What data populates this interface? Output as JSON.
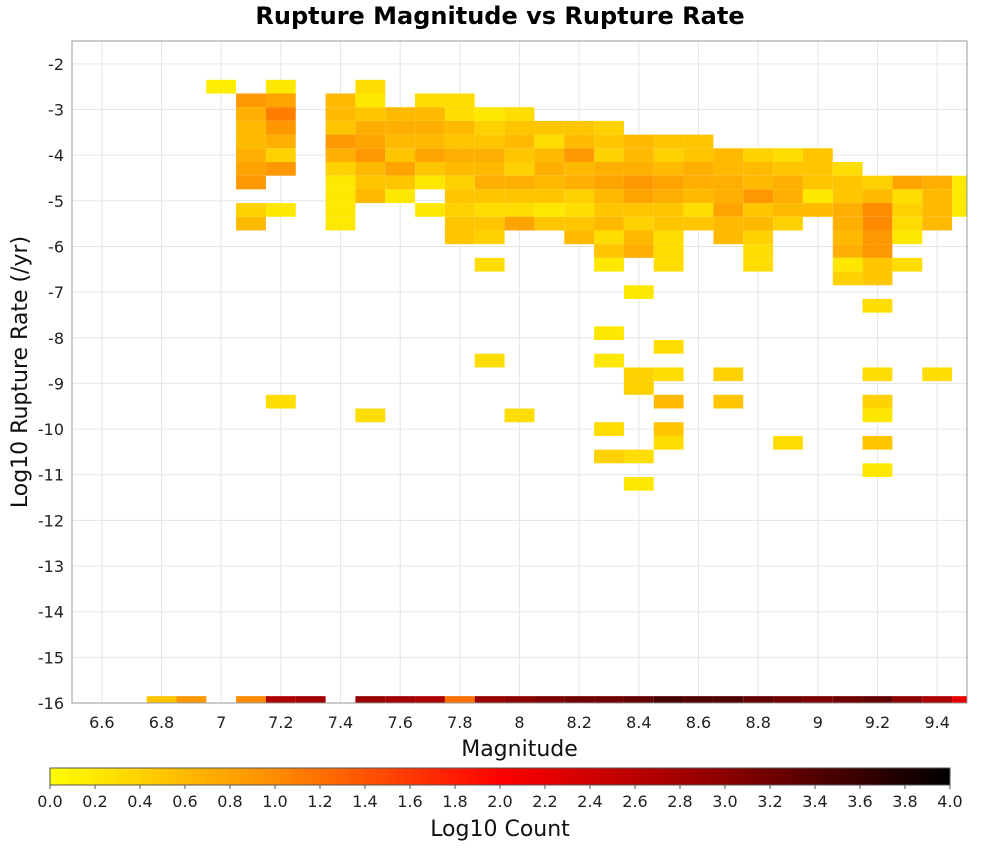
{
  "chart_data": {
    "type": "heatmap",
    "title": "Rupture Magnitude vs Rupture Rate",
    "xlabel": "Magnitude",
    "ylabel": "Log10 Rupture Rate (/yr)",
    "colorbar_label": "Log10 Count",
    "x_ticks": [
      "6.6",
      "6.8",
      "7",
      "7.2",
      "7.4",
      "7.6",
      "7.8",
      "8",
      "8.2",
      "8.4",
      "8.6",
      "8.8",
      "9",
      "9.2",
      "9.4"
    ],
    "y_ticks": [
      "-2",
      "-3",
      "-4",
      "-5",
      "-6",
      "-7",
      "-8",
      "-9",
      "-10",
      "-11",
      "-12",
      "-13",
      "-14",
      "-15",
      "-16"
    ],
    "colorbar_ticks": [
      "0.0",
      "0.2",
      "0.4",
      "0.6",
      "0.8",
      "1.0",
      "1.2",
      "1.4",
      "1.6",
      "1.8",
      "2.0",
      "2.2",
      "2.4",
      "2.6",
      "2.8",
      "3.0",
      "3.2",
      "3.4",
      "3.6",
      "3.8",
      "4.0"
    ],
    "xlim": [
      6.5,
      9.5
    ],
    "ylim": [
      -16,
      -1.5
    ],
    "cell_width": 0.1,
    "cell_height": 0.3,
    "colorscale_range": [
      0,
      4
    ],
    "colorscale": [
      "#ffff00",
      "#ff8c00",
      "#ff0000",
      "#8b0000",
      "#000000"
    ],
    "grid": true,
    "colorbar_position": "bottom",
    "cells": [
      [
        7.0,
        -2.5,
        0.15
      ],
      [
        7.1,
        -2.8,
        0.9
      ],
      [
        7.1,
        -3.1,
        0.7
      ],
      [
        7.1,
        -3.4,
        0.6
      ],
      [
        7.1,
        -3.7,
        0.6
      ],
      [
        7.1,
        -4.0,
        0.7
      ],
      [
        7.1,
        -4.3,
        0.8
      ],
      [
        7.1,
        -4.6,
        0.9
      ],
      [
        7.1,
        -5.2,
        0.4
      ],
      [
        7.1,
        -5.5,
        0.6
      ],
      [
        7.2,
        -2.5,
        0.2
      ],
      [
        7.2,
        -2.8,
        0.8
      ],
      [
        7.2,
        -3.1,
        1.1
      ],
      [
        7.2,
        -3.4,
        0.9
      ],
      [
        7.2,
        -3.7,
        0.7
      ],
      [
        7.2,
        -4.0,
        0.4
      ],
      [
        7.2,
        -4.3,
        0.9
      ],
      [
        7.2,
        -5.2,
        0.2
      ],
      [
        7.2,
        -9.4,
        0.3
      ],
      [
        7.4,
        -2.8,
        0.6
      ],
      [
        7.4,
        -3.1,
        0.6
      ],
      [
        7.4,
        -3.4,
        0.5
      ],
      [
        7.4,
        -3.7,
        0.9
      ],
      [
        7.4,
        -4.0,
        0.7
      ],
      [
        7.4,
        -4.3,
        0.4
      ],
      [
        7.4,
        -4.6,
        0.2
      ],
      [
        7.4,
        -4.9,
        0.2
      ],
      [
        7.4,
        -5.2,
        0.2
      ],
      [
        7.4,
        -5.5,
        0.2
      ],
      [
        7.5,
        -2.5,
        0.3
      ],
      [
        7.5,
        -2.8,
        0.2
      ],
      [
        7.5,
        -3.1,
        0.5
      ],
      [
        7.5,
        -3.4,
        0.7
      ],
      [
        7.5,
        -3.7,
        0.8
      ],
      [
        7.5,
        -4.0,
        0.9
      ],
      [
        7.5,
        -4.3,
        0.6
      ],
      [
        7.5,
        -4.6,
        0.5
      ],
      [
        7.5,
        -4.9,
        0.6
      ],
      [
        7.5,
        -9.7,
        0.3
      ],
      [
        7.6,
        -3.1,
        0.6
      ],
      [
        7.6,
        -3.4,
        0.7
      ],
      [
        7.6,
        -3.7,
        0.6
      ],
      [
        7.6,
        -4.0,
        0.5
      ],
      [
        7.6,
        -4.3,
        0.8
      ],
      [
        7.6,
        -4.6,
        0.5
      ],
      [
        7.6,
        -4.9,
        0.2
      ],
      [
        7.7,
        -2.8,
        0.3
      ],
      [
        7.7,
        -3.1,
        0.6
      ],
      [
        7.7,
        -3.4,
        0.7
      ],
      [
        7.7,
        -3.7,
        0.6
      ],
      [
        7.7,
        -4.0,
        0.8
      ],
      [
        7.7,
        -4.3,
        0.5
      ],
      [
        7.7,
        -4.6,
        0.2
      ],
      [
        7.7,
        -5.2,
        0.2
      ],
      [
        7.8,
        -2.8,
        0.3
      ],
      [
        7.8,
        -3.1,
        0.3
      ],
      [
        7.8,
        -3.4,
        0.6
      ],
      [
        7.8,
        -3.7,
        0.5
      ],
      [
        7.8,
        -4.0,
        0.7
      ],
      [
        7.8,
        -4.3,
        0.6
      ],
      [
        7.8,
        -4.6,
        0.4
      ],
      [
        7.8,
        -4.9,
        0.5
      ],
      [
        7.8,
        -5.2,
        0.4
      ],
      [
        7.8,
        -5.5,
        0.5
      ],
      [
        7.8,
        -5.8,
        0.5
      ],
      [
        7.9,
        -3.1,
        0.2
      ],
      [
        7.9,
        -3.4,
        0.4
      ],
      [
        7.9,
        -3.7,
        0.5
      ],
      [
        7.9,
        -4.0,
        0.7
      ],
      [
        7.9,
        -4.3,
        0.6
      ],
      [
        7.9,
        -4.6,
        0.7
      ],
      [
        7.9,
        -4.9,
        0.5
      ],
      [
        7.9,
        -5.2,
        0.3
      ],
      [
        7.9,
        -5.5,
        0.5
      ],
      [
        7.9,
        -5.8,
        0.4
      ],
      [
        7.9,
        -6.4,
        0.3
      ],
      [
        7.9,
        -8.5,
        0.3
      ],
      [
        8.0,
        -3.1,
        0.3
      ],
      [
        8.0,
        -3.4,
        0.5
      ],
      [
        8.0,
        -3.7,
        0.6
      ],
      [
        8.0,
        -4.0,
        0.5
      ],
      [
        8.0,
        -4.3,
        0.4
      ],
      [
        8.0,
        -4.6,
        0.7
      ],
      [
        8.0,
        -4.9,
        0.5
      ],
      [
        8.0,
        -5.2,
        0.3
      ],
      [
        8.0,
        -5.5,
        0.8
      ],
      [
        8.0,
        -9.7,
        0.3
      ],
      [
        8.1,
        -3.4,
        0.5
      ],
      [
        8.1,
        -3.7,
        0.3
      ],
      [
        8.1,
        -4.0,
        0.6
      ],
      [
        8.1,
        -4.3,
        0.7
      ],
      [
        8.1,
        -4.6,
        0.6
      ],
      [
        8.1,
        -4.9,
        0.5
      ],
      [
        8.1,
        -5.2,
        0.2
      ],
      [
        8.1,
        -5.5,
        0.5
      ],
      [
        8.2,
        -3.4,
        0.5
      ],
      [
        8.2,
        -3.7,
        0.6
      ],
      [
        8.2,
        -4.0,
        0.9
      ],
      [
        8.2,
        -4.3,
        0.6
      ],
      [
        8.2,
        -4.6,
        0.7
      ],
      [
        8.2,
        -4.9,
        0.4
      ],
      [
        8.2,
        -5.2,
        0.3
      ],
      [
        8.2,
        -5.5,
        0.5
      ],
      [
        8.2,
        -5.8,
        0.6
      ],
      [
        8.3,
        -3.4,
        0.4
      ],
      [
        8.3,
        -3.7,
        0.5
      ],
      [
        8.3,
        -4.0,
        0.4
      ],
      [
        8.3,
        -4.3,
        0.7
      ],
      [
        8.3,
        -4.6,
        0.8
      ],
      [
        8.3,
        -4.9,
        0.6
      ],
      [
        8.3,
        -5.2,
        0.5
      ],
      [
        8.3,
        -5.5,
        0.6
      ],
      [
        8.3,
        -5.8,
        0.3
      ],
      [
        8.3,
        -6.1,
        0.5
      ],
      [
        8.3,
        -6.4,
        0.2
      ],
      [
        8.3,
        -7.9,
        0.2
      ],
      [
        8.3,
        -8.5,
        0.2
      ],
      [
        8.3,
        -10.0,
        0.3
      ],
      [
        8.3,
        -10.6,
        0.4
      ],
      [
        8.4,
        -3.7,
        0.6
      ],
      [
        8.4,
        -4.0,
        0.6
      ],
      [
        8.4,
        -4.3,
        0.7
      ],
      [
        8.4,
        -4.6,
        0.9
      ],
      [
        8.4,
        -4.9,
        0.8
      ],
      [
        8.4,
        -5.2,
        0.5
      ],
      [
        8.4,
        -5.5,
        0.4
      ],
      [
        8.4,
        -5.8,
        0.6
      ],
      [
        8.4,
        -6.1,
        0.7
      ],
      [
        8.4,
        -7.0,
        0.2
      ],
      [
        8.4,
        -8.8,
        0.4
      ],
      [
        8.4,
        -9.1,
        0.4
      ],
      [
        8.4,
        -10.6,
        0.3
      ],
      [
        8.4,
        -11.2,
        0.2
      ],
      [
        8.5,
        -3.7,
        0.5
      ],
      [
        8.5,
        -4.0,
        0.4
      ],
      [
        8.5,
        -4.3,
        0.6
      ],
      [
        8.5,
        -4.6,
        0.8
      ],
      [
        8.5,
        -4.9,
        0.7
      ],
      [
        8.5,
        -5.2,
        0.5
      ],
      [
        8.5,
        -5.5,
        0.5
      ],
      [
        8.5,
        -5.8,
        0.3
      ],
      [
        8.5,
        -6.1,
        0.3
      ],
      [
        8.5,
        -6.4,
        0.3
      ],
      [
        8.5,
        -8.2,
        0.3
      ],
      [
        8.5,
        -8.8,
        0.3
      ],
      [
        8.5,
        -9.4,
        0.6
      ],
      [
        8.5,
        -10.0,
        0.5
      ],
      [
        8.5,
        -10.3,
        0.3
      ],
      [
        8.6,
        -3.7,
        0.5
      ],
      [
        8.6,
        -4.0,
        0.5
      ],
      [
        8.6,
        -4.3,
        0.7
      ],
      [
        8.6,
        -4.6,
        0.7
      ],
      [
        8.6,
        -4.9,
        0.6
      ],
      [
        8.6,
        -5.2,
        0.3
      ],
      [
        8.6,
        -5.5,
        0.5
      ],
      [
        8.7,
        -4.0,
        0.6
      ],
      [
        8.7,
        -4.3,
        0.6
      ],
      [
        8.7,
        -4.6,
        0.7
      ],
      [
        8.7,
        -4.9,
        0.7
      ],
      [
        8.7,
        -5.2,
        0.8
      ],
      [
        8.7,
        -5.5,
        0.6
      ],
      [
        8.7,
        -5.8,
        0.6
      ],
      [
        8.7,
        -8.8,
        0.4
      ],
      [
        8.7,
        -9.4,
        0.5
      ],
      [
        8.8,
        -4.0,
        0.4
      ],
      [
        8.8,
        -4.3,
        0.6
      ],
      [
        8.8,
        -4.6,
        0.6
      ],
      [
        8.8,
        -4.9,
        0.9
      ],
      [
        8.8,
        -5.2,
        0.5
      ],
      [
        8.8,
        -5.5,
        0.6
      ],
      [
        8.8,
        -5.8,
        0.4
      ],
      [
        8.8,
        -6.1,
        0.3
      ],
      [
        8.8,
        -6.4,
        0.3
      ],
      [
        8.9,
        -4.0,
        0.3
      ],
      [
        8.9,
        -4.3,
        0.5
      ],
      [
        8.9,
        -4.6,
        0.7
      ],
      [
        8.9,
        -4.9,
        0.7
      ],
      [
        8.9,
        -5.2,
        0.6
      ],
      [
        8.9,
        -5.5,
        0.4
      ],
      [
        8.9,
        -10.3,
        0.3
      ],
      [
        9.0,
        -4.0,
        0.5
      ],
      [
        9.0,
        -4.3,
        0.5
      ],
      [
        9.0,
        -4.6,
        0.5
      ],
      [
        9.0,
        -4.9,
        0.2
      ],
      [
        9.0,
        -5.2,
        0.6
      ],
      [
        9.1,
        -4.3,
        0.3
      ],
      [
        9.1,
        -4.6,
        0.5
      ],
      [
        9.1,
        -4.9,
        0.5
      ],
      [
        9.1,
        -5.2,
        0.7
      ],
      [
        9.1,
        -5.5,
        0.7
      ],
      [
        9.1,
        -5.8,
        0.6
      ],
      [
        9.1,
        -6.1,
        0.7
      ],
      [
        9.1,
        -6.4,
        0.2
      ],
      [
        9.1,
        -6.7,
        0.4
      ],
      [
        9.2,
        -4.6,
        0.4
      ],
      [
        9.2,
        -4.9,
        0.6
      ],
      [
        9.2,
        -5.2,
        1.0
      ],
      [
        9.2,
        -5.5,
        1.0
      ],
      [
        9.2,
        -5.8,
        0.9
      ],
      [
        9.2,
        -6.1,
        0.9
      ],
      [
        9.2,
        -6.4,
        0.5
      ],
      [
        9.2,
        -6.7,
        0.5
      ],
      [
        9.2,
        -7.3,
        0.3
      ],
      [
        9.2,
        -8.8,
        0.3
      ],
      [
        9.2,
        -9.4,
        0.4
      ],
      [
        9.2,
        -9.7,
        0.2
      ],
      [
        9.2,
        -10.3,
        0.5
      ],
      [
        9.2,
        -10.9,
        0.2
      ],
      [
        9.3,
        -4.6,
        0.8
      ],
      [
        9.3,
        -4.9,
        0.3
      ],
      [
        9.3,
        -5.2,
        0.4
      ],
      [
        9.3,
        -5.5,
        0.3
      ],
      [
        9.3,
        -5.8,
        0.2
      ],
      [
        9.3,
        -6.4,
        0.3
      ],
      [
        9.4,
        -4.6,
        0.7
      ],
      [
        9.4,
        -4.9,
        0.6
      ],
      [
        9.4,
        -5.2,
        0.6
      ],
      [
        9.4,
        -5.5,
        0.6
      ],
      [
        9.4,
        -8.8,
        0.3
      ],
      [
        9.5,
        -4.6,
        0.2
      ],
      [
        9.5,
        -4.9,
        0.2
      ],
      [
        9.5,
        -5.2,
        0.2
      ],
      [
        6.8,
        -16.0,
        0.5
      ],
      [
        6.9,
        -16.0,
        0.9
      ],
      [
        7.1,
        -16.0,
        1.0
      ],
      [
        7.2,
        -16.0,
        2.7
      ],
      [
        7.3,
        -16.0,
        2.8
      ],
      [
        7.5,
        -16.0,
        2.9
      ],
      [
        7.6,
        -16.0,
        2.8
      ],
      [
        7.7,
        -16.0,
        2.7
      ],
      [
        7.8,
        -16.0,
        1.2
      ],
      [
        7.9,
        -16.0,
        2.9
      ],
      [
        8.0,
        -16.0,
        3.0
      ],
      [
        8.1,
        -16.0,
        3.1
      ],
      [
        8.2,
        -16.0,
        3.2
      ],
      [
        8.3,
        -16.0,
        3.2
      ],
      [
        8.4,
        -16.0,
        3.3
      ],
      [
        8.5,
        -16.0,
        3.5
      ],
      [
        8.6,
        -16.0,
        3.4
      ],
      [
        8.7,
        -16.0,
        3.4
      ],
      [
        8.8,
        -16.0,
        3.3
      ],
      [
        8.9,
        -16.0,
        3.2
      ],
      [
        9.0,
        -16.0,
        3.1
      ],
      [
        9.1,
        -16.0,
        3.2
      ],
      [
        9.2,
        -16.0,
        3.3
      ],
      [
        9.3,
        -16.0,
        3.0
      ],
      [
        9.4,
        -16.0,
        2.7
      ],
      [
        9.5,
        -16.0,
        2.2
      ]
    ]
  }
}
